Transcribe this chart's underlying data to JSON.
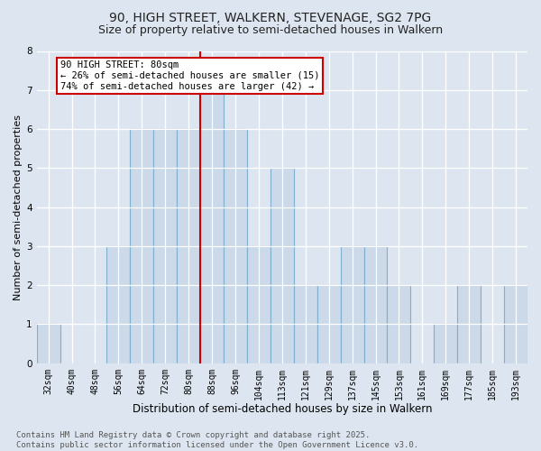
{
  "title1": "90, HIGH STREET, WALKERN, STEVENAGE, SG2 7PG",
  "title2": "Size of property relative to semi-detached houses in Walkern",
  "xlabel": "Distribution of semi-detached houses by size in Walkern",
  "ylabel": "Number of semi-detached properties",
  "categories": [
    "32sqm",
    "40sqm",
    "48sqm",
    "56sqm",
    "64sqm",
    "72sqm",
    "80sqm",
    "88sqm",
    "96sqm",
    "104sqm",
    "113sqm",
    "121sqm",
    "129sqm",
    "137sqm",
    "145sqm",
    "153sqm",
    "161sqm",
    "169sqm",
    "177sqm",
    "185sqm",
    "193sqm"
  ],
  "values": [
    1,
    0,
    0,
    3,
    6,
    6,
    6,
    7,
    6,
    3,
    5,
    2,
    2,
    3,
    3,
    2,
    0,
    1,
    2,
    0,
    2
  ],
  "bar_color": "#ccd9e8",
  "bar_edge_color": "#7fafd0",
  "red_line_x": 6.5,
  "annotation_text": "90 HIGH STREET: 80sqm\n← 26% of semi-detached houses are smaller (15)\n74% of semi-detached houses are larger (42) →",
  "annotation_box_color": "#ffffff",
  "annotation_border_color": "#cc0000",
  "ylim": [
    0,
    8
  ],
  "yticks": [
    0,
    1,
    2,
    3,
    4,
    5,
    6,
    7,
    8
  ],
  "background_color": "#dde6f0",
  "plot_background": "#dde6f0",
  "grid_color": "#ffffff",
  "footer": "Contains HM Land Registry data © Crown copyright and database right 2025.\nContains public sector information licensed under the Open Government Licence v3.0.",
  "title1_fontsize": 10,
  "title2_fontsize": 9,
  "xlabel_fontsize": 8.5,
  "ylabel_fontsize": 8,
  "tick_fontsize": 7,
  "annotation_fontsize": 7.5,
  "footer_fontsize": 6.5
}
